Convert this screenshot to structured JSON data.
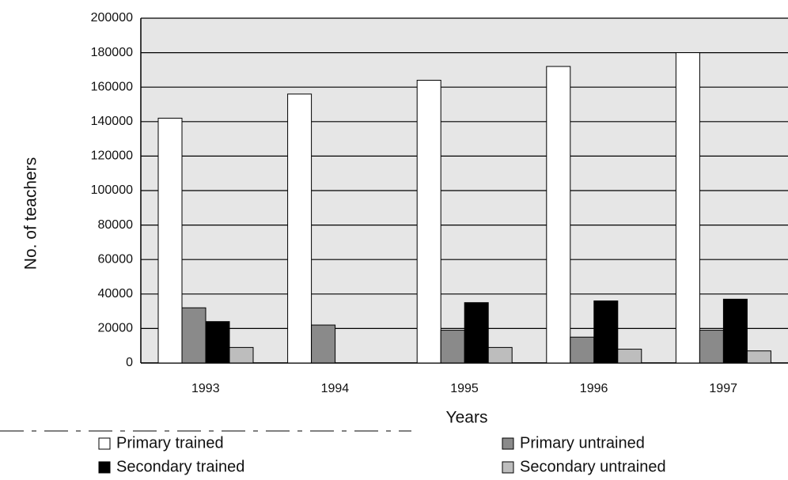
{
  "chart_data": {
    "type": "bar",
    "x_label": "Years",
    "y_label": "No. of teachers",
    "categories": [
      "1993",
      "1994",
      "1995",
      "1996",
      "1997"
    ],
    "series": [
      {
        "name": "Primary trained",
        "color": "#ffffff",
        "values": [
          142000,
          156000,
          164000,
          172000,
          180000
        ]
      },
      {
        "name": "Primary untrained",
        "color": "#8a8a8a",
        "values": [
          32000,
          22000,
          19000,
          15000,
          19000
        ]
      },
      {
        "name": "Secondary trained",
        "color": "#000000",
        "values": [
          24000,
          null,
          35000,
          36000,
          37000
        ]
      },
      {
        "name": "Secondary untrained",
        "color": "#bdbdbd",
        "values": [
          9000,
          null,
          9000,
          8000,
          7000
        ]
      }
    ],
    "ylim": [
      0,
      200000
    ],
    "yticks": [
      0,
      20000,
      40000,
      60000,
      80000,
      100000,
      120000,
      140000,
      160000,
      180000,
      200000
    ],
    "grid": true
  }
}
